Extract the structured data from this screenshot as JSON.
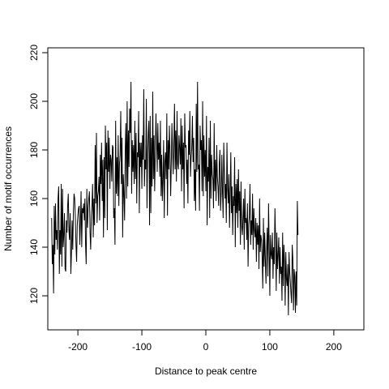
{
  "chart_data": {
    "type": "line",
    "title": "",
    "xlabel": "Distance to peak centre",
    "ylabel": "Number of motif occurrences",
    "xlim": [
      -247,
      247
    ],
    "ylim": [
      106,
      222
    ],
    "x_ticks": [
      -200,
      -100,
      0,
      100,
      200
    ],
    "x_tick_labels": [
      "-200",
      "-100",
      "0",
      "100",
      "200"
    ],
    "y_ticks": [
      120,
      140,
      160,
      180,
      200,
      220
    ],
    "y_tick_labels": [
      "120",
      "140",
      "160",
      "180",
      "200",
      "220"
    ],
    "grid": false,
    "legend": "none",
    "line_color": "#000000",
    "series": [
      {
        "x_start": -241,
        "x_step": 1,
        "values": [
          152,
          133,
          141,
          121,
          157,
          137,
          158,
          143,
          147,
          139,
          160,
          165,
          129,
          147,
          137,
          166,
          132,
          164,
          140,
          145,
          154,
          131,
          130,
          151,
          146,
          157,
          162,
          147,
          143,
          154,
          129,
          138,
          151,
          139,
          155,
          162,
          160,
          152,
          141,
          134,
          149,
          153,
          156,
          157,
          141,
          150,
          163,
          140,
          156,
          154,
          158,
          151,
          160,
          141,
          133,
          164,
          148,
          156,
          160,
          163,
          146,
          139,
          153,
          157,
          166,
          144,
          160,
          149,
          182,
          158,
          187,
          150,
          161,
          163,
          169,
          151,
          178,
          166,
          183,
          159,
          176,
          144,
          177,
          152,
          190,
          172,
          183,
          147,
          188,
          171,
          185,
          164,
          178,
          176,
          167,
          182,
          181,
          152,
          156,
          141,
          192,
          162,
          177,
          161,
          186,
          157,
          174,
          178,
          196,
          166,
          185,
          144,
          170,
          162,
          151,
          180,
          191,
          160,
          200,
          165,
          188,
          173,
          197,
          187,
          208,
          162,
          184,
          171,
          182,
          166,
          192,
          168,
          187,
          158,
          179,
          177,
          196,
          154,
          183,
          173,
          183,
          164,
          186,
          176,
          205,
          165,
          176,
          172,
          201,
          156,
          178,
          187,
          192,
          149,
          194,
          154,
          185,
          165,
          204,
          168,
          186,
          163,
          178,
          195,
          184,
          171,
          191,
          176,
          183,
          169,
          192,
          161,
          178,
          159,
          168,
          184,
          152,
          175,
          179,
          168,
          195,
          153,
          184,
          172,
          190,
          179,
          161,
          174,
          191,
          180,
          170,
          183,
          199,
          172,
          188,
          167,
          196,
          174,
          172,
          186,
          181,
          174,
          193,
          163,
          190,
          172,
          183,
          156,
          195,
          181,
          182,
          166,
          176,
          158,
          188,
          178,
          196,
          169,
          177,
          181,
          194,
          175,
          185,
          159,
          172,
          155,
          199,
          171,
          208,
          172,
          174,
          155,
          190,
          180,
          184,
          163,
          200,
          161,
          186,
          169,
          180,
          163,
          194,
          149,
          173,
          167,
          185,
          152,
          192,
          160,
          178,
          170,
          168,
          156,
          191,
          163,
          176,
          159,
          182,
          169,
          165,
          157,
          174,
          180,
          155,
          162,
          178,
          163,
          152,
          183,
          171,
          160,
          166,
          150,
          183,
          164,
          158,
          170,
          148,
          162,
          179,
          154,
          165,
          145,
          161,
          157,
          177,
          140,
          166,
          154,
          168,
          148,
          172,
          155,
          163,
          141,
          167,
          149,
          145,
          152,
          160,
          139,
          164,
          150,
          152,
          143,
          158,
          132,
          149,
          153,
          166,
          141,
          151,
          145,
          162,
          139,
          156,
          147,
          144,
          152,
          134,
          150,
          141,
          149,
          131,
          160,
          138,
          145,
          143,
          136,
          123,
          152,
          132,
          146,
          135,
          125,
          139,
          148,
          128,
          158,
          141,
          120,
          145,
          137,
          135,
          146,
          127,
          140,
          133,
          156,
          143,
          122,
          146,
          131,
          137,
          144,
          125,
          140,
          129,
          132,
          118,
          146,
          124,
          141,
          134,
          116,
          138,
          127,
          124,
          133,
          112,
          138,
          130,
          126,
          121,
          117,
          141,
          135,
          114,
          131,
          128,
          113,
          130,
          116,
          159,
          145
        ]
      }
    ]
  }
}
